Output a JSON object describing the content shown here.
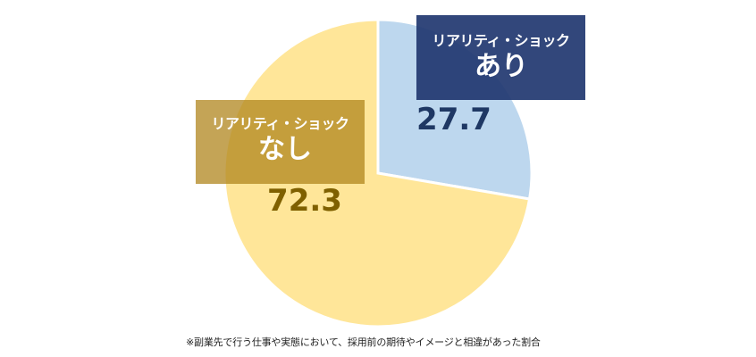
{
  "chart_data": {
    "type": "pie",
    "categories": [
      "リアリティ・ショック あり",
      "リアリティ・ショック なし"
    ],
    "values": [
      27.7,
      72.3
    ],
    "slices": [
      {
        "label_line1": "リアリティ・ショック",
        "label_line2": "あり",
        "value": 27.7,
        "value_label": "27.7",
        "color": "#bdd7ee",
        "value_color": "#1f3864"
      },
      {
        "label_line1": "リアリティ・ショック",
        "label_line2": "なし",
        "value": 72.3,
        "value_label": "72.3",
        "color": "#ffe699",
        "value_color": "#7f6000"
      }
    ],
    "start_angle_deg": 0,
    "direction": "clockwise",
    "legend": "none",
    "footnote": "※副業先で行う仕事や実態において、採用前の期待やイメージと相違があった割合"
  },
  "callout_colors": {
    "ari": "#213770",
    "nashi": "#b0861e"
  },
  "callouts": {
    "ari": {
      "line1": "リアリティ・ショック",
      "line2": "あり"
    },
    "nashi": {
      "line1": "リアリティ・ショック",
      "line2": "なし"
    }
  }
}
